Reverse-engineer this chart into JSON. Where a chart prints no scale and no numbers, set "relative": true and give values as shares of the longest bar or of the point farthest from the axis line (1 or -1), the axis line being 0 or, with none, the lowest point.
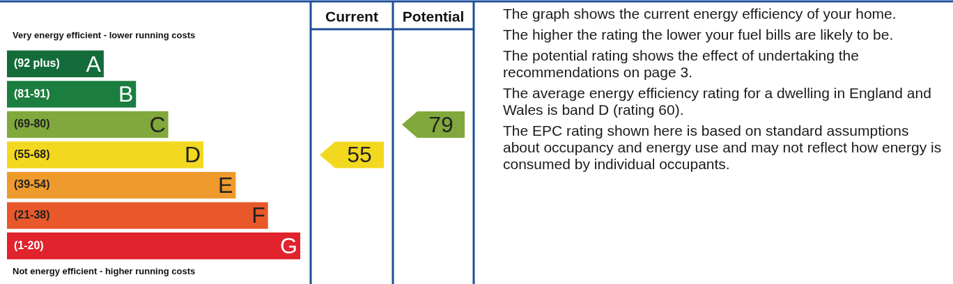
{
  "chart_data": {
    "type": "bar",
    "orientation": "horizontal",
    "relative": true,
    "categories": [
      "(92 plus)",
      "(81-91)",
      "(69-80)",
      "(55-68)",
      "(39-54)",
      "(21-38)",
      "(1-20)"
    ],
    "values": [
      0.33,
      0.44,
      0.55,
      0.67,
      0.78,
      0.89,
      1
    ],
    "colors": [
      "#146c3b",
      "#1b7d3e",
      "#80a83c",
      "#f2d81e",
      "#ef9a2c",
      "#e8582a",
      "#e0232d"
    ],
    "annotations": [
      "Very energy efficient - lower running costs",
      "Not energy efficient - higher running costs",
      "Current",
      "Potential",
      "55",
      "79",
      {
        "text": "A",
        "y": "(92 plus)"
      },
      {
        "text": "B",
        "y": "(81-91)"
      },
      {
        "text": "C",
        "y": "(69-80)"
      },
      {
        "text": "D",
        "y": "(55-68)"
      },
      {
        "text": "E",
        "y": "(39-54)"
      },
      {
        "text": "F",
        "y": "(21-38)"
      },
      {
        "text": "G",
        "y": "(1-20)"
      },
      "The graph shows the current energy efficiency of your home.",
      "The higher the rating the lower your fuel bills are likely to be.",
      "The potential rating shows the effect of undertaking the recommendations on page 3.",
      "The average energy efficiency rating for a dwelling in England and Wales is band D (rating 60).",
      "The EPC rating shown here is based on standard assumptions about occupancy and energy use and may not reflect how energy is consumed by individual occupants."
    ]
  }
}
